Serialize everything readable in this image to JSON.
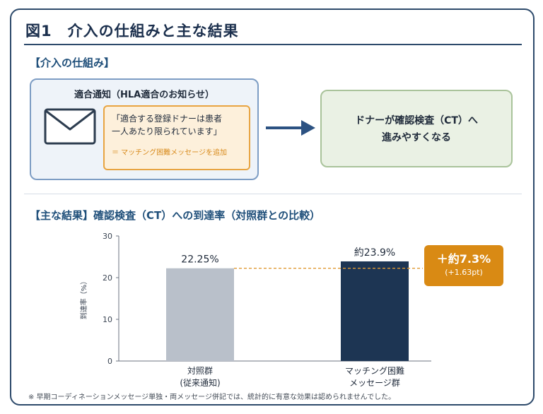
{
  "figure": {
    "title": "図1　介入の仕組みと主な結果"
  },
  "mechanism": {
    "heading": "【介入の仕組み】",
    "notification_title": "適合通知（HLA適合のお知らせ）",
    "message_lines": [
      "「適合する登録ドナーは患者",
      "一人あたり限られています」"
    ],
    "added_note": "＝ マッチング困難メッセージを追加",
    "outcome_lines": [
      "ドナーが確認検査（CT）へ",
      "進みやすくなる"
    ],
    "icons": {
      "envelope": "envelope-icon",
      "arrow": "right-arrow-icon"
    }
  },
  "results": {
    "heading": "【主な結果】確認検査（CT）への到達率（対照群との比較）",
    "difference_main": "＋約7.3%",
    "difference_sub": "(+1.63pt)"
  },
  "footnote": "※ 早期コーディネーションメッセージ単独・両メッセージ併記では、統計的に有意な効果は認められませんでした。",
  "colors": {
    "control_bar": "#b9c0ca",
    "treatment_bar": "#1d3553",
    "accent": "#d98a14",
    "reference_line": "#e09a35"
  },
  "chart_data": {
    "type": "bar",
    "categories": [
      [
        "対照群",
        "(従来通知)"
      ],
      [
        "マッチング困難",
        "メッセージ群"
      ]
    ],
    "values": [
      22.25,
      23.9
    ],
    "value_labels": [
      "22.25%",
      "約23.9%"
    ],
    "ylabel": "到達率（%）",
    "ylim": [
      0,
      30
    ],
    "yticks": [
      0,
      10,
      20,
      30
    ],
    "reference_line": 22.25,
    "grid": false
  }
}
